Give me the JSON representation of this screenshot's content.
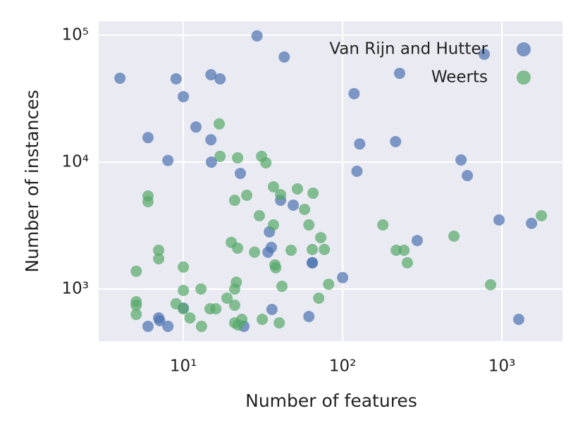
{
  "chart_data": {
    "type": "scatter",
    "xlabel": "Number of features",
    "ylabel": "Number of instances",
    "xscale": "log",
    "yscale": "log",
    "grid": true,
    "legend": "upper right",
    "alpha": 0.7,
    "xlim": [
      2.94,
      2400
    ],
    "ylim": [
      388,
      129000
    ],
    "xticks": [
      {
        "value": 10,
        "label": "10¹"
      },
      {
        "value": 100,
        "label": "10²"
      },
      {
        "value": 1000,
        "label": "10³"
      }
    ],
    "yticks": [
      {
        "value": 1000,
        "label": "10³"
      },
      {
        "value": 10000,
        "label": "10⁴"
      },
      {
        "value": 100000,
        "label": "10⁵"
      }
    ],
    "series": [
      {
        "name": "Van Rijn and Hutter",
        "color": "#4c72b0",
        "x": [
          4,
          9,
          14.9,
          17,
          10,
          29,
          43,
          6,
          12,
          14.9,
          8,
          15,
          22.8,
          40.8,
          49,
          34.7,
          35.7,
          34,
          64.5,
          36,
          61.4,
          24,
          6,
          8,
          7.1,
          7,
          10,
          100,
          118,
          128,
          123,
          215,
          554,
          607,
          960,
          1535,
          294,
          1276,
          775,
          228,
          64.5
        ],
        "values": [
          45800,
          45300,
          48800,
          45300,
          32800,
          98700,
          67300,
          15600,
          18900,
          15000,
          10300,
          10000,
          8150,
          5000,
          4580,
          2820,
          2130,
          1950,
          1610,
          690,
          607,
          508,
          508,
          508,
          563,
          592,
          708,
          1230,
          34600,
          13900,
          8470,
          14500,
          10400,
          7830,
          3500,
          3290,
          2410,
          577,
          70800,
          50100,
          1610
        ]
      },
      {
        "name": "Weerts",
        "color": "#55a868",
        "x": [
          16.8,
          17,
          21.9,
          31,
          33,
          6,
          6,
          25,
          36.8,
          40.8,
          52,
          65.2,
          21,
          30,
          36.8,
          57.7,
          61.4,
          72.9,
          28,
          20,
          21.9,
          76.8,
          47.5,
          64.5,
          37.6,
          38,
          7,
          7,
          5.06,
          10,
          179,
          500,
          217,
          243,
          255,
          849,
          1770,
          81.7,
          41.6,
          21.5,
          21,
          12.9,
          18.8,
          10,
          9,
          10,
          5.06,
          5.06,
          5.06,
          11,
          14.7,
          16,
          21,
          31.3,
          23.3,
          40,
          21,
          22.1,
          13,
          70.8
        ],
        "values": [
          20000,
          11100,
          10800,
          11100,
          9870,
          5410,
          4880,
          5480,
          6390,
          5540,
          6150,
          5690,
          5000,
          3780,
          3200,
          4240,
          3200,
          2540,
          1950,
          2330,
          2100,
          2050,
          2020,
          2050,
          1550,
          1470,
          2020,
          1730,
          1380,
          1490,
          3200,
          2610,
          2020,
          2020,
          1610,
          1080,
          3780,
          1090,
          1050,
          1130,
          1000,
          1000,
          847,
          975,
          765,
          699,
          794,
          745,
          631,
          592,
          699,
          699,
          745,
          577,
          577,
          541,
          541,
          521,
          508,
          847
        ]
      }
    ]
  }
}
